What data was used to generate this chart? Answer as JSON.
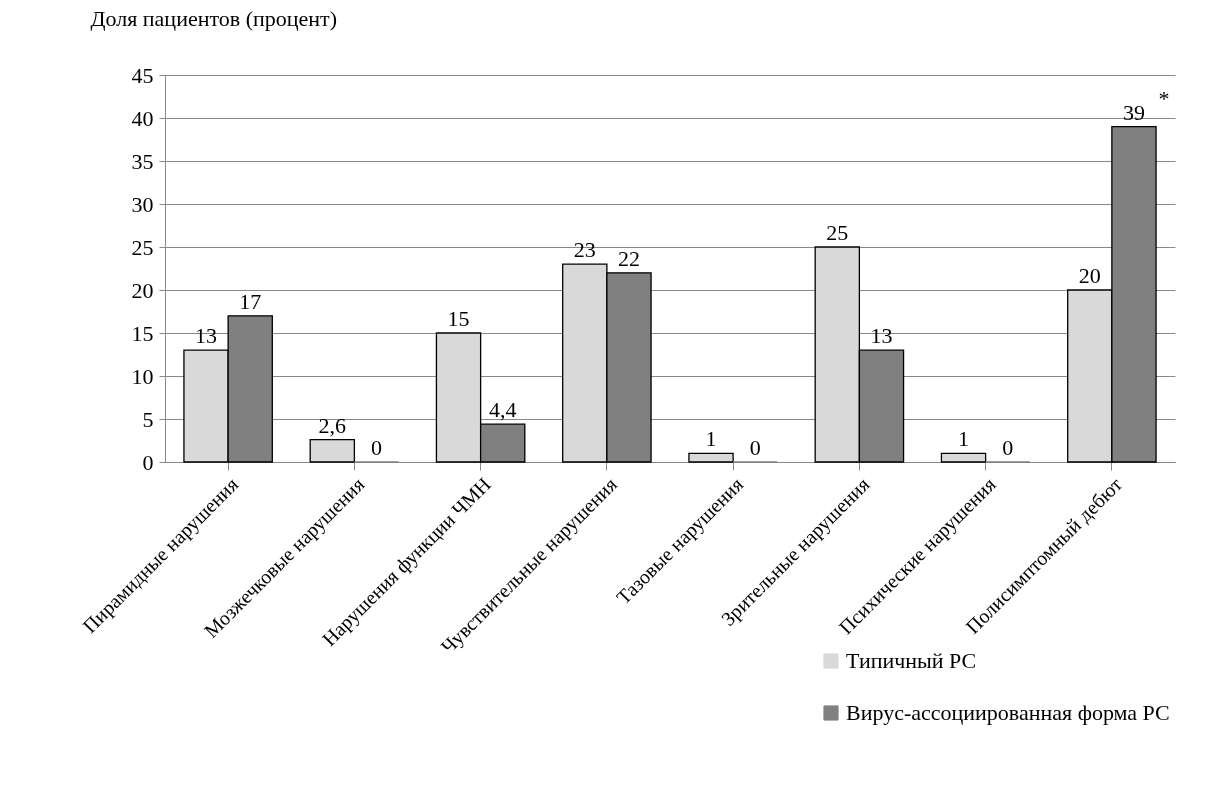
{
  "chart_data": {
    "type": "bar",
    "ylabel": "Доля пациентов (процент)",
    "categories": [
      "Пирамидные нарушения",
      "Мозжечковые нарушения",
      "Нарушения функции ЧМН",
      "Чувствительные нарушения",
      "Тазовые нарушения",
      "Зрительные нарушения",
      "Психические нарушения",
      "Полисимптомный дебют"
    ],
    "series": [
      {
        "name": "Типичный РС",
        "color": "#d9d9d9",
        "values": [
          13,
          2.6,
          15,
          23,
          1,
          25,
          1,
          20
        ],
        "value_labels": [
          "13",
          "2,6",
          "15",
          "23",
          "1",
          "25",
          "1",
          "20"
        ]
      },
      {
        "name": "Вирус-ассоциированная форма РС",
        "color": "#808080",
        "values": [
          17,
          0,
          4.4,
          22,
          0,
          13,
          0,
          39
        ],
        "value_labels": [
          "17",
          "0",
          "4,4",
          "22",
          "0",
          "13",
          "0",
          "39"
        ]
      }
    ],
    "ylim": [
      0,
      45
    ],
    "yticks": [
      0,
      5,
      10,
      15,
      20,
      25,
      30,
      35,
      40,
      45
    ],
    "grid": "y",
    "legend": "bottom right",
    "annotations": [
      {
        "text": "*",
        "x": "Полисимптомный дебют",
        "y": 39
      }
    ]
  }
}
